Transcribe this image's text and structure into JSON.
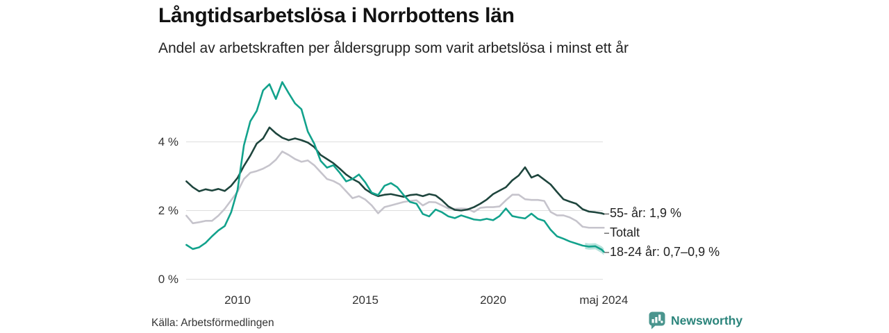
{
  "header": {
    "title": "Långtidsarbetslösa i Norrbottens län",
    "subtitle": "Andel av arbetskraften per åldersgrupp som varit arbetslösa i minst ett år"
  },
  "footer": {
    "source": "Källa: Arbetsförmedlingen",
    "brand_name": "Newsworthy",
    "brand_color": "#2b847b",
    "brand_icon": "newsworthy-speech-bubble-chart-icon",
    "brand_icon_color": "#4a958e"
  },
  "chart_data": {
    "type": "line",
    "title": "Långtidsarbetslösa i Norrbottens län",
    "subtitle": "Andel av arbetskraften per åldersgrupp som varit arbetslösa i minst ett år",
    "xlabel": "",
    "ylabel": "",
    "unit": "%",
    "ylim": [
      0,
      6
    ],
    "xlim": [
      2008,
      2024.42
    ],
    "grid": true,
    "grid_color": "#dddddd",
    "axis_text_color": "#333333",
    "x_ticks": [
      {
        "label": "2010",
        "x": 2010
      },
      {
        "label": "2015",
        "x": 2015
      },
      {
        "label": "2020",
        "x": 2020
      },
      {
        "label": "maj 2024",
        "x": 2024.33
      }
    ],
    "y_ticks": [
      {
        "label": "0 %",
        "value": 0
      },
      {
        "label": "2 %",
        "value": 2
      },
      {
        "label": "4 %",
        "value": 4
      }
    ],
    "legend_position": "right-end-labels",
    "x": [
      2008,
      2008.25,
      2008.5,
      2008.75,
      2009,
      2009.25,
      2009.5,
      2009.75,
      2010,
      2010.25,
      2010.5,
      2010.75,
      2011,
      2011.25,
      2011.5,
      2011.75,
      2012,
      2012.25,
      2012.5,
      2012.75,
      2013,
      2013.25,
      2013.5,
      2013.75,
      2014,
      2014.25,
      2014.5,
      2014.75,
      2015,
      2015.25,
      2015.5,
      2015.75,
      2016,
      2016.25,
      2016.5,
      2016.75,
      2017,
      2017.25,
      2017.5,
      2017.75,
      2018,
      2018.25,
      2018.5,
      2018.75,
      2019,
      2019.25,
      2019.5,
      2019.75,
      2020,
      2020.25,
      2020.5,
      2020.75,
      2021,
      2021.25,
      2021.5,
      2021.75,
      2022,
      2022.25,
      2022.5,
      2022.75,
      2023,
      2023.25,
      2023.5,
      2023.75,
      2024,
      2024.25,
      2024.33
    ],
    "series": [
      {
        "name": "55- år",
        "end_label": "55- år: 1,9 %",
        "last_value": 1.9,
        "color": "#1e453d",
        "values": [
          2.85,
          2.68,
          2.56,
          2.62,
          2.58,
          2.63,
          2.57,
          2.72,
          2.95,
          3.3,
          3.6,
          3.95,
          4.1,
          4.42,
          4.25,
          4.12,
          4.05,
          4.1,
          4.05,
          3.98,
          3.85,
          3.62,
          3.5,
          3.38,
          3.22,
          3.05,
          2.92,
          2.82,
          2.62,
          2.5,
          2.42,
          2.46,
          2.48,
          2.44,
          2.4,
          2.45,
          2.47,
          2.42,
          2.48,
          2.44,
          2.3,
          2.12,
          2.02,
          2.0,
          2.03,
          2.1,
          2.2,
          2.32,
          2.48,
          2.58,
          2.68,
          2.88,
          3.02,
          3.26,
          2.96,
          3.04,
          2.9,
          2.76,
          2.54,
          2.33,
          2.26,
          2.2,
          2.04,
          1.97,
          1.95,
          1.92,
          1.9
        ]
      },
      {
        "name": "Totalt",
        "end_label": "Totalt",
        "last_value": 1.5,
        "color": "#c6c4cc",
        "values": [
          1.85,
          1.63,
          1.66,
          1.7,
          1.7,
          1.85,
          2.05,
          2.3,
          2.55,
          2.92,
          3.1,
          3.15,
          3.22,
          3.32,
          3.48,
          3.72,
          3.62,
          3.5,
          3.42,
          3.46,
          3.32,
          3.12,
          2.92,
          2.86,
          2.76,
          2.56,
          2.36,
          2.42,
          2.32,
          2.15,
          1.92,
          2.1,
          2.15,
          2.2,
          2.25,
          2.28,
          2.3,
          2.15,
          2.25,
          2.24,
          2.15,
          2.06,
          2.05,
          2.06,
          2.05,
          1.96,
          2.08,
          2.1,
          2.1,
          2.12,
          2.3,
          2.46,
          2.46,
          2.33,
          2.31,
          2.31,
          2.28,
          1.96,
          1.86,
          1.86,
          1.8,
          1.7,
          1.53,
          1.5,
          1.5,
          1.5,
          1.5
        ]
      },
      {
        "name": "18-24 år",
        "end_label": "18-24 år: 0,7–0,9 %",
        "last_value_range": [
          0.7,
          0.9
        ],
        "color": "#12a28c",
        "band_color": "#12a28c",
        "band_opacity": 0.3,
        "values": [
          1.0,
          0.88,
          0.93,
          1.06,
          1.25,
          1.42,
          1.55,
          1.95,
          2.6,
          3.9,
          4.6,
          4.9,
          5.5,
          5.68,
          5.25,
          5.74,
          5.42,
          5.12,
          4.95,
          4.3,
          3.95,
          3.45,
          3.25,
          3.32,
          3.1,
          2.85,
          2.92,
          3.05,
          2.82,
          2.52,
          2.45,
          2.72,
          2.8,
          2.68,
          2.45,
          2.25,
          2.2,
          1.9,
          1.83,
          2.03,
          1.95,
          1.83,
          1.78,
          1.86,
          1.8,
          1.74,
          1.72,
          1.76,
          1.72,
          1.84,
          2.06,
          1.84,
          1.8,
          1.77,
          1.91,
          1.76,
          1.7,
          1.44,
          1.25,
          1.18,
          1.1,
          1.04,
          0.98,
          0.95,
          0.96,
          0.86,
          0.8
        ],
        "band": {
          "x": [
            2023.6,
            2023.75,
            2024,
            2024.25,
            2024.33
          ],
          "low": [
            0.88,
            0.86,
            0.87,
            0.76,
            0.7
          ],
          "high": [
            1.06,
            1.04,
            1.05,
            0.96,
            0.9
          ]
        }
      }
    ]
  }
}
